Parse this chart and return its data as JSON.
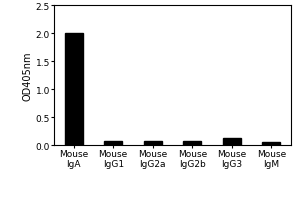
{
  "categories": [
    "Mouse\nIgA",
    "Mouse\nIgG1",
    "Mouse\nIgG2a",
    "Mouse\nIgG2b",
    "Mouse\nIgG3",
    "Mouse\nIgM"
  ],
  "values": [
    2.0,
    0.08,
    0.08,
    0.07,
    0.13,
    0.06
  ],
  "bar_color": "#000000",
  "ylabel": "OD405nm",
  "ylim": [
    0,
    2.5
  ],
  "yticks": [
    0.0,
    0.5,
    1.0,
    1.5,
    2.0,
    2.5
  ],
  "bar_width": 0.45,
  "background_color": "#ffffff",
  "ylabel_fontsize": 7,
  "tick_fontsize": 6.5,
  "xlabel_fontsize": 6.5,
  "figsize": [
    3.0,
    2.03
  ],
  "dpi": 100
}
